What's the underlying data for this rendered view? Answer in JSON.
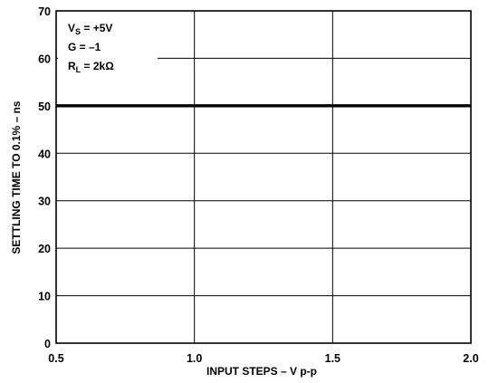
{
  "chart_data": {
    "type": "line",
    "title": "",
    "xlabel": "INPUT STEPS – V p-p",
    "ylabel": "SETTLING TIME TO 0.1% – ns",
    "xlim": [
      0.5,
      2.0
    ],
    "ylim": [
      0,
      70
    ],
    "x_ticks": [
      0.5,
      1.0,
      1.5,
      2.0
    ],
    "x_tick_labels": [
      "0.5",
      "1.0",
      "1.5",
      "2.0"
    ],
    "y_ticks": [
      0,
      10,
      20,
      30,
      40,
      50,
      60,
      70
    ],
    "y_tick_labels": [
      "0",
      "10",
      "20",
      "30",
      "40",
      "50",
      "60",
      "70"
    ],
    "grid": true,
    "series": [
      {
        "x": [
          0.5,
          2.0
        ],
        "values": [
          50,
          50
        ]
      }
    ],
    "annotations": {
      "vs": {
        "main": "V",
        "sub": "S",
        "rest": " = +5V"
      },
      "gain": {
        "main": "G = –1"
      },
      "rl": {
        "main": "R",
        "sub": "L",
        "rest": " = 2kΩ"
      }
    }
  }
}
